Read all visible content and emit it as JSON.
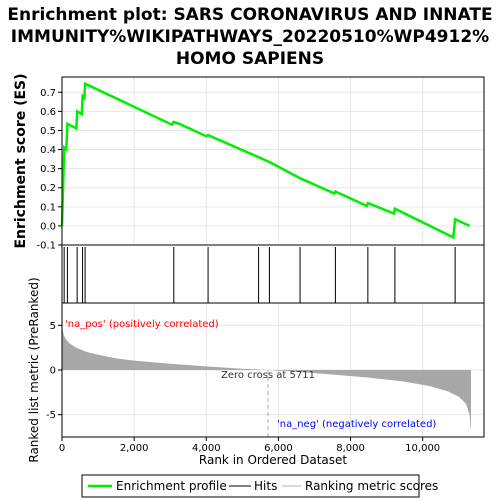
{
  "chart_data": {
    "type": "line",
    "title_lines": [
      "Enrichment plot: SARS CORONAVIRUS AND INNATE",
      "IMMUNITY%WIKIPATHWAYS_20220510%WP4912%",
      "HOMO SAPIENS"
    ],
    "es_panel": {
      "ylabel": "Enrichment score (ES)",
      "ylim": [
        -0.1,
        0.78
      ],
      "yticks": [
        -0.1,
        0.0,
        0.1,
        0.2,
        0.3,
        0.4,
        0.5,
        0.6,
        0.7
      ],
      "ytick_labels": [
        "-0.1",
        "0.0",
        "0.1",
        "0.2",
        "0.3",
        "0.4",
        "0.5",
        "0.6",
        "0.7"
      ],
      "series": [
        {
          "name": "Enrichment profile",
          "color": "#00ee00",
          "x": [
            0,
            60,
            120,
            150,
            400,
            420,
            550,
            570,
            620,
            640,
            3050,
            3100,
            3250,
            4000,
            4050,
            5450,
            5750,
            6600,
            7550,
            7580,
            8450,
            8480,
            9200,
            9230,
            10850,
            10900,
            11300
          ],
          "y": [
            0.0,
            0.41,
            0.4,
            0.535,
            0.51,
            0.6,
            0.585,
            0.68,
            0.67,
            0.745,
            0.53,
            0.545,
            0.535,
            0.47,
            0.475,
            0.36,
            0.335,
            0.25,
            0.17,
            0.18,
            0.105,
            0.12,
            0.065,
            0.09,
            -0.06,
            0.035,
            0.0
          ]
        }
      ]
    },
    "hits": {
      "name": "Hits",
      "x": [
        60,
        150,
        420,
        570,
        640,
        3100,
        4050,
        5450,
        5750,
        6600,
        7580,
        8480,
        9230,
        10900
      ]
    },
    "metric_panel": {
      "ylabel": "Ranked list metric (PreRanked)",
      "ylim": [
        -7.5,
        7.5
      ],
      "yticks": [
        -5,
        0,
        5
      ],
      "ytick_labels": [
        "-5",
        "0",
        "5"
      ],
      "series_name": "Ranking metric scores",
      "zero_cross": 5711,
      "zero_cross_label": "Zero cross at 5711",
      "pos_label": "'na_pos' (positively correlated)",
      "neg_label": "'na_neg' (negatively correlated)",
      "curve": {
        "x": [
          0,
          20,
          50,
          100,
          200,
          400,
          700,
          1000,
          1500,
          2000,
          3000,
          4000,
          5000,
          5711,
          6500,
          7500,
          8500,
          9500,
          10200,
          10700,
          11000,
          11200,
          11300,
          11340
        ],
        "y": [
          5.5,
          4.5,
          3.9,
          3.5,
          3.0,
          2.5,
          2.0,
          1.7,
          1.3,
          1.05,
          0.7,
          0.4,
          0.15,
          0.0,
          -0.2,
          -0.5,
          -0.85,
          -1.3,
          -1.8,
          -2.4,
          -3.0,
          -3.8,
          -5.0,
          -7.0
        ]
      }
    },
    "xaxis": {
      "label": "Rank in Ordered Dataset",
      "xlim": [
        0,
        11700
      ],
      "ticks": [
        0,
        2000,
        4000,
        6000,
        8000,
        10000
      ],
      "tick_labels": [
        "0",
        "2,000",
        "4,000",
        "6,000",
        "8,000",
        "10,000"
      ],
      "data_max": 11340
    },
    "legend": {
      "placement": "bottom",
      "items": [
        {
          "label": "Enrichment profile",
          "color": "#00ee00"
        },
        {
          "label": "Hits",
          "color": "#808080"
        },
        {
          "label": "Ranking metric scores",
          "color": "#d8d8d8"
        }
      ]
    }
  }
}
